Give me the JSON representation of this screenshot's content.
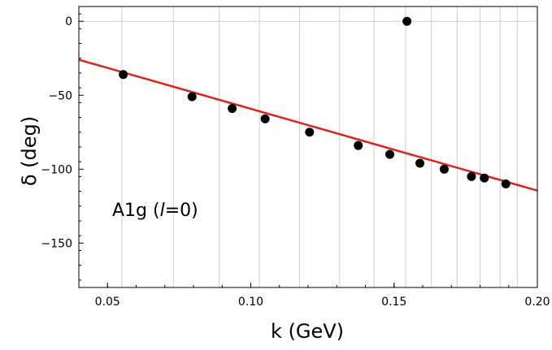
{
  "chart_data": {
    "type": "scatter",
    "title": "",
    "xlabel": "k (GeV)",
    "ylabel": "δ (deg)",
    "xlim": [
      0.04,
      0.2
    ],
    "ylim": [
      -180,
      10
    ],
    "xticks": [
      0.05,
      0.1,
      0.15,
      0.2
    ],
    "xtick_labels": [
      "0.05",
      "0.10",
      "0.15",
      "0.20"
    ],
    "yticks": [
      0,
      -50,
      -100,
      -150
    ],
    "ytick_labels": [
      "0",
      "−50",
      "−100",
      "−150"
    ],
    "vertical_gridlines_x": [
      0.055,
      0.073,
      0.089,
      0.103,
      0.117,
      0.131,
      0.143,
      0.154,
      0.163,
      0.172,
      0.18,
      0.187,
      0.193
    ],
    "horizontal_gridline_y": 0,
    "annotation": {
      "prefix": "A1g (",
      "italic": "l",
      "suffix": "=0)"
    },
    "points": [
      {
        "x": 0.0555,
        "y": -36
      },
      {
        "x": 0.0795,
        "y": -51
      },
      {
        "x": 0.0935,
        "y": -59
      },
      {
        "x": 0.105,
        "y": -66
      },
      {
        "x": 0.1205,
        "y": -75
      },
      {
        "x": 0.1375,
        "y": -84
      },
      {
        "x": 0.1485,
        "y": -90
      },
      {
        "x": 0.159,
        "y": -96
      },
      {
        "x": 0.1675,
        "y": -100
      },
      {
        "x": 0.177,
        "y": -105
      },
      {
        "x": 0.1815,
        "y": -106
      },
      {
        "x": 0.189,
        "y": -110
      },
      {
        "x": 0.1545,
        "y": 0
      }
    ],
    "fit_line": {
      "x": [
        0.04,
        0.2
      ],
      "y": [
        -26,
        -114.5
      ]
    },
    "colors": {
      "points": "#000000",
      "fit_line": "#e0201a",
      "grid": "#cfcfcf",
      "frame": "#000000"
    }
  }
}
